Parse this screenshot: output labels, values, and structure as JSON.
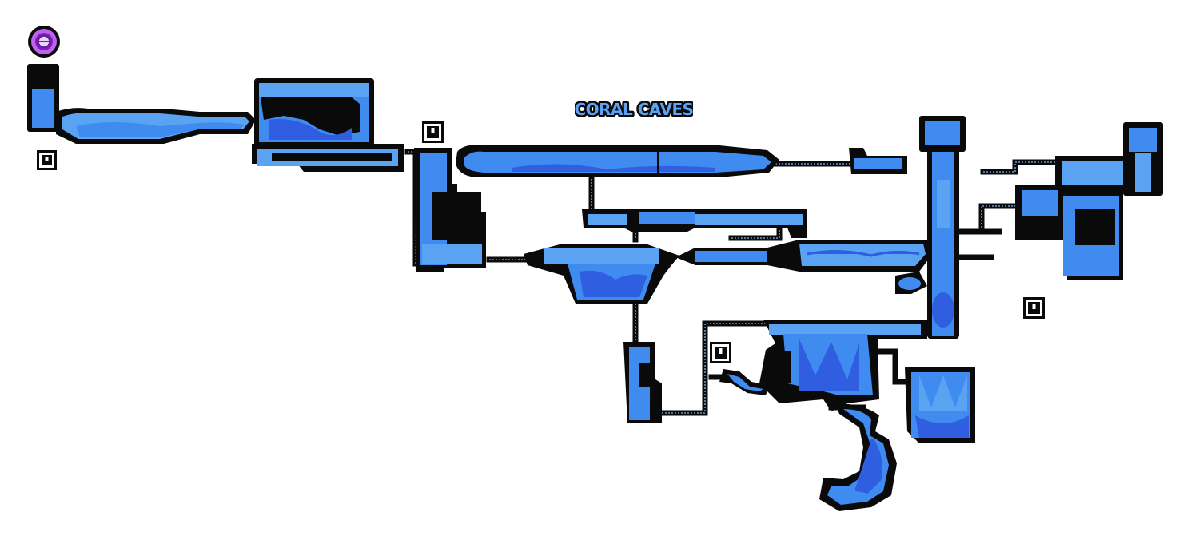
{
  "map": {
    "region_name": "CORAL CAVES",
    "colors": {
      "outline": "#0a0a0a",
      "water": "#3f8bef",
      "water_light": "#5aa2f2",
      "water_deep": "#2f5fe0",
      "title_text": "#5aa2f2",
      "portal": "#9b30d6"
    },
    "markers": [
      {
        "type": "save-point",
        "icon": "save-station-icon"
      },
      {
        "type": "save-point",
        "icon": "save-station-icon"
      },
      {
        "type": "save-point",
        "icon": "save-station-icon"
      },
      {
        "type": "save-point",
        "icon": "save-station-icon"
      },
      {
        "type": "portal",
        "icon": "portal-ring-icon"
      }
    ]
  }
}
